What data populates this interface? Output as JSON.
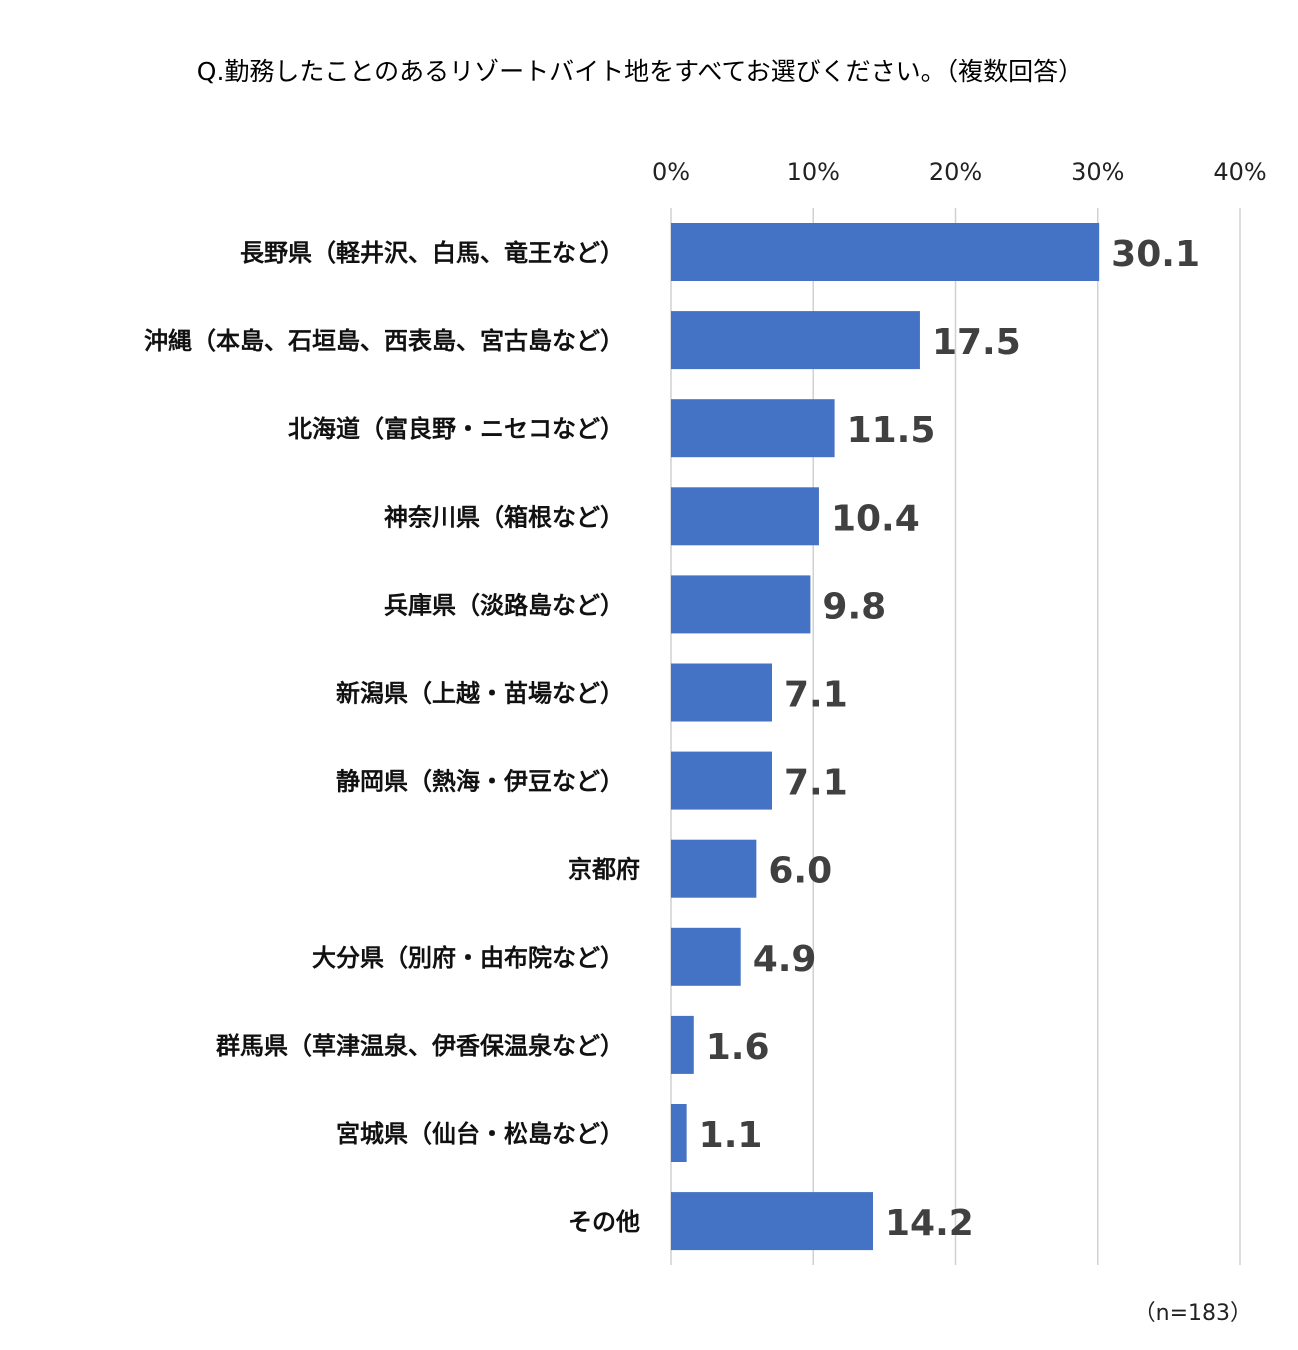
{
  "chart_data": {
    "type": "bar",
    "orientation": "horizontal",
    "title": "Q.勤務したことのあるリゾートバイト地をすべてお選びください。（複数回答）",
    "categories": [
      "長野県（軽井沢、白馬、竜王など）",
      "沖縄（本島、石垣島、西表島、宮古島など）",
      "北海道（富良野・ニセコなど）",
      "神奈川県（箱根など）",
      "兵庫県（淡路島など）",
      "新潟県（上越・苗場など）",
      "静岡県（熱海・伊豆など）",
      "京都府",
      "大分県（別府・由布院など）",
      "群馬県（草津温泉、伊香保温泉など）",
      "宮城県（仙台・松島など）",
      "その他"
    ],
    "values": [
      30.1,
      17.5,
      11.5,
      10.4,
      9.8,
      7.1,
      7.1,
      6.0,
      4.9,
      1.6,
      1.1,
      14.2
    ],
    "value_labels": [
      "30.1",
      "17.5",
      "11.5",
      "10.4",
      "9.8",
      "7.1",
      "7.1",
      "6.0",
      "4.9",
      "1.6",
      "1.1",
      "14.2"
    ],
    "x_ticks": [
      0,
      10,
      20,
      30,
      40
    ],
    "x_tick_labels": [
      "0%",
      "10%",
      "20%",
      "30%",
      "40%"
    ],
    "xlim": [
      0,
      40
    ],
    "axis_position": "top",
    "grid": true,
    "bar_color": "#4472C4",
    "note": "（n=183）"
  }
}
